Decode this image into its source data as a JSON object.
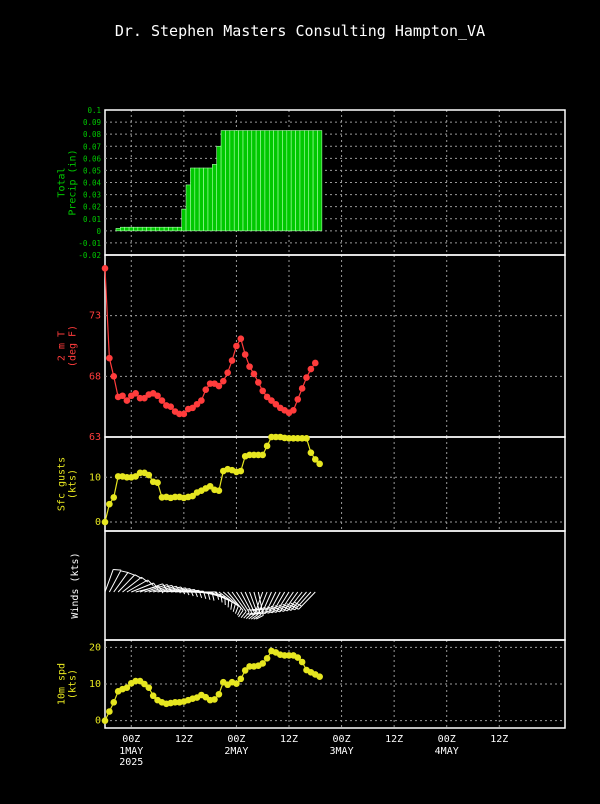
{
  "header": {
    "title": "Dr. Stephen Masters Consulting  Hampton_VA"
  },
  "colors": {
    "background": "#000000",
    "frame": "#ffffff",
    "grid": "#9a9a9a",
    "precip": "#00c800",
    "precip_label": "#00c800",
    "temp": "#ff3c3c",
    "gusts": "#e6e620",
    "winds": "#ffffff",
    "speed": "#e6e620"
  },
  "time_axis": {
    "x_range_hours": [
      -6,
      99
    ],
    "ticks": [
      {
        "hour": 0,
        "label": "00Z",
        "sub": "1MAY",
        "sub2": "2025"
      },
      {
        "hour": 12,
        "label": "12Z",
        "sub": "",
        "sub2": ""
      },
      {
        "hour": 24,
        "label": "00Z",
        "sub": "2MAY",
        "sub2": ""
      },
      {
        "hour": 36,
        "label": "12Z",
        "sub": "",
        "sub2": ""
      },
      {
        "hour": 48,
        "label": "00Z",
        "sub": "3MAY",
        "sub2": ""
      },
      {
        "hour": 60,
        "label": "12Z",
        "sub": "",
        "sub2": ""
      },
      {
        "hour": 72,
        "label": "00Z",
        "sub": "4MAY",
        "sub2": ""
      },
      {
        "hour": 84,
        "label": "12Z",
        "sub": "",
        "sub2": ""
      }
    ]
  },
  "chart_data": [
    {
      "type": "bar",
      "ylabel": "Total\nPrecip (in)",
      "ylim": [
        -0.02,
        0.1
      ],
      "yticks": [
        -0.02,
        -0.01,
        0,
        0.01,
        0.02,
        0.03,
        0.04,
        0.05,
        0.06,
        0.07,
        0.08,
        0.09,
        0.1
      ],
      "ytick_labels": [
        "-0.02",
        "-0.01",
        "0",
        "0.01",
        "0.02",
        "0.03",
        "0.04",
        "0.05",
        "0.06",
        "0.07",
        "0.08",
        "0.09",
        "0.1"
      ],
      "grid": true,
      "x_hours": [
        -3,
        -2,
        -1,
        0,
        1,
        2,
        3,
        4,
        5,
        6,
        7,
        8,
        9,
        10,
        11,
        12,
        13,
        14,
        15,
        16,
        17,
        18,
        19,
        20,
        21,
        22,
        23,
        24,
        25,
        26,
        27,
        28,
        29,
        30,
        31,
        32,
        33,
        34,
        35,
        36,
        37,
        38,
        39,
        40,
        41,
        42,
        43
      ],
      "values": [
        0.002,
        0.003,
        0.003,
        0.003,
        0.003,
        0.003,
        0.003,
        0.003,
        0.003,
        0.003,
        0.003,
        0.003,
        0.003,
        0.003,
        0.003,
        0.018,
        0.038,
        0.052,
        0.052,
        0.052,
        0.052,
        0.052,
        0.055,
        0.07,
        0.083,
        0.083,
        0.083,
        0.083,
        0.083,
        0.083,
        0.083,
        0.083,
        0.083,
        0.083,
        0.083,
        0.083,
        0.083,
        0.083,
        0.083,
        0.083,
        0.083,
        0.083,
        0.083,
        0.083,
        0.083,
        0.083,
        0.083
      ]
    },
    {
      "type": "line",
      "ylabel": "2 m T\n(deg F)",
      "ylim": [
        63,
        78
      ],
      "yticks": [
        63,
        68,
        73
      ],
      "ytick_labels": [
        "63",
        "68",
        "73"
      ],
      "grid": true,
      "x_hours": [
        -6,
        -5,
        -4,
        -3,
        -2,
        -1,
        0,
        1,
        2,
        3,
        4,
        5,
        6,
        7,
        8,
        9,
        10,
        11,
        12,
        13,
        14,
        15,
        16,
        17,
        18,
        19,
        20,
        21,
        22,
        23,
        24,
        25,
        26,
        27,
        28,
        29,
        30,
        31,
        32,
        33,
        34,
        35,
        36,
        37,
        38,
        39,
        40,
        41,
        42
      ],
      "values": [
        76.9,
        69.5,
        68.0,
        66.3,
        66.4,
        66.0,
        66.4,
        66.6,
        66.2,
        66.2,
        66.5,
        66.6,
        66.4,
        66.0,
        65.6,
        65.5,
        65.1,
        64.9,
        64.9,
        65.3,
        65.4,
        65.7,
        66.0,
        66.9,
        67.4,
        67.4,
        67.2,
        67.6,
        68.3,
        69.3,
        70.5,
        71.1,
        69.8,
        68.8,
        68.2,
        67.5,
        66.8,
        66.3,
        66.0,
        65.7,
        65.4,
        65.2,
        65.0,
        65.2,
        66.1,
        67.0,
        67.9,
        68.6,
        69.1
      ]
    },
    {
      "type": "line",
      "ylabel": "Sfc gusts\n(kts)",
      "ylim": [
        -2,
        19
      ],
      "yticks": [
        0,
        10
      ],
      "ytick_labels": [
        "0",
        "10"
      ],
      "grid": true,
      "x_hours": [
        -6,
        -5,
        -4,
        -3,
        -2,
        -1,
        0,
        1,
        2,
        3,
        4,
        5,
        6,
        7,
        8,
        9,
        10,
        11,
        12,
        13,
        14,
        15,
        16,
        17,
        18,
        19,
        20,
        21,
        22,
        23,
        24,
        25,
        26,
        27,
        28,
        29,
        30,
        31,
        32,
        33,
        34,
        35,
        36,
        37,
        38,
        39,
        40,
        41,
        42,
        43
      ],
      "values": [
        0,
        4,
        5.5,
        10.2,
        10.2,
        10.0,
        10.0,
        10.2,
        11.0,
        11.0,
        10.5,
        9.0,
        8.8,
        5.5,
        5.6,
        5.4,
        5.6,
        5.6,
        5.4,
        5.6,
        5.8,
        6.6,
        7.0,
        7.5,
        8.0,
        7.2,
        7.0,
        11.4,
        11.8,
        11.6,
        11.2,
        11.4,
        14.7,
        15.0,
        15.0,
        15.0,
        15.0,
        17.0,
        19.0,
        19.0,
        19.0,
        18.8,
        18.7,
        18.7,
        18.7,
        18.7,
        18.7,
        15.5,
        14.0,
        13.0
      ]
    },
    {
      "type": "barbs",
      "ylabel": "Winds (kts)",
      "grid": false
    },
    {
      "type": "line",
      "ylabel": "10m spd\n(kts)",
      "ylim": [
        -2,
        22
      ],
      "yticks": [
        0,
        10,
        20
      ],
      "ytick_labels": [
        "0",
        "10",
        "20"
      ],
      "grid": true,
      "x_hours": [
        -6,
        -5,
        -4,
        -3,
        -2,
        -1,
        0,
        1,
        2,
        3,
        4,
        5,
        6,
        7,
        8,
        9,
        10,
        11,
        12,
        13,
        14,
        15,
        16,
        17,
        18,
        19,
        20,
        21,
        22,
        23,
        24,
        25,
        26,
        27,
        28,
        29,
        30,
        31,
        32,
        33,
        34,
        35,
        36,
        37,
        38,
        39,
        40,
        41,
        42,
        43
      ],
      "values": [
        0,
        2.5,
        5,
        8,
        8.6,
        9,
        10.2,
        10.8,
        10.8,
        10.0,
        9.0,
        6.8,
        5.6,
        5.0,
        4.6,
        4.8,
        5.0,
        5.0,
        5.2,
        5.6,
        6.0,
        6.3,
        7.0,
        6.4,
        5.6,
        5.8,
        7.2,
        10.5,
        9.8,
        10.5,
        10.1,
        11.4,
        13.7,
        14.8,
        14.8,
        15.0,
        15.6,
        17.0,
        19.0,
        18.6,
        18.0,
        17.8,
        17.8,
        17.8,
        17.2,
        16.0,
        13.8,
        13.2,
        12.6,
        12.0
      ]
    }
  ]
}
